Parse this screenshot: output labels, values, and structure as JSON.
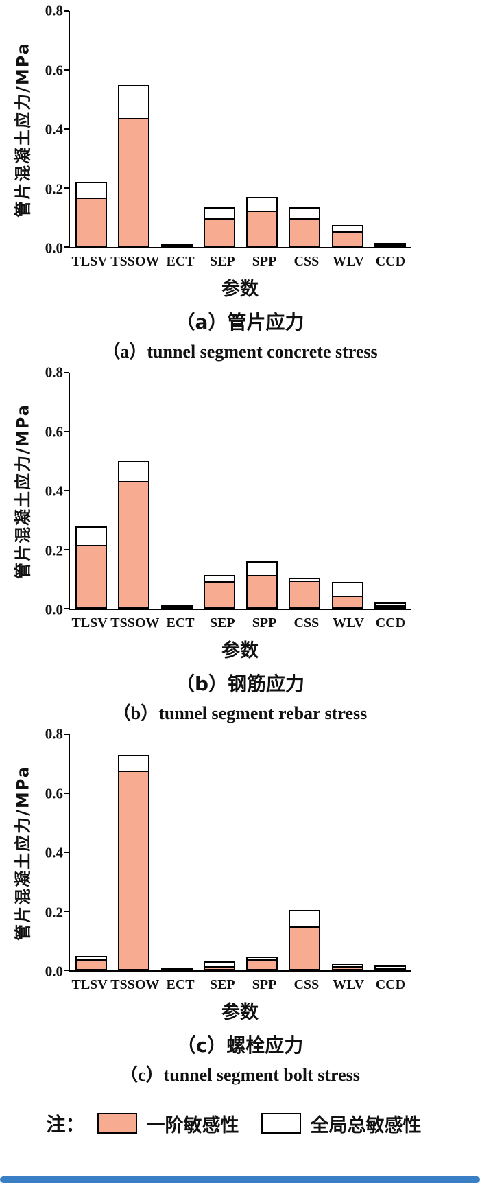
{
  "note_label": "注：",
  "legend": [
    {
      "label": "一阶敏感性",
      "color": "#F7AC92"
    },
    {
      "label": "全局总敏感性",
      "color": "#FFFFFF"
    }
  ],
  "accent_colors": {
    "bar_fill": "#F7AC92",
    "bar_border": "#000000",
    "bottom_rule": "#3A7EC6"
  },
  "chart_data": [
    {
      "type": "bar",
      "stacked": true,
      "ylabel": "管片混凝土应力/MPa",
      "xlabel": "参数",
      "title_cn": "（a）管片应力",
      "title_en": "（a）tunnel segment concrete stress",
      "ylim": [
        0,
        0.8
      ],
      "yticks": [
        0.0,
        0.2,
        0.4,
        0.6,
        0.8
      ],
      "categories": [
        "TLSV",
        "TSSOW",
        "ECT",
        "SEP",
        "SPP",
        "CSS",
        "WLV",
        "CCD"
      ],
      "series": [
        {
          "name": "一阶敏感性",
          "values": [
            0.17,
            0.44,
            0.008,
            0.1,
            0.125,
            0.1,
            0.055,
            0.012
          ]
        },
        {
          "name": "全局总敏感性",
          "values": [
            0.22,
            0.55,
            0.012,
            0.135,
            0.17,
            0.135,
            0.075,
            0.015
          ]
        }
      ]
    },
    {
      "type": "bar",
      "stacked": true,
      "ylabel": "管片混凝土应力/MPa",
      "xlabel": "参数",
      "title_cn": "（b）钢筋应力",
      "title_en": "（b）tunnel segment rebar stress",
      "ylim": [
        0,
        0.8
      ],
      "yticks": [
        0.0,
        0.2,
        0.4,
        0.6,
        0.8
      ],
      "categories": [
        "TLSV",
        "TSSOW",
        "ECT",
        "SEP",
        "SPP",
        "CSS",
        "WLV",
        "CCD"
      ],
      "series": [
        {
          "name": "一阶敏感性",
          "values": [
            0.22,
            0.435,
            0.01,
            0.095,
            0.115,
            0.1,
            0.045,
            0.015
          ]
        },
        {
          "name": "全局总敏感性",
          "values": [
            0.28,
            0.5,
            0.014,
            0.115,
            0.16,
            0.105,
            0.09,
            0.02
          ]
        }
      ]
    },
    {
      "type": "bar",
      "stacked": true,
      "ylabel": "管片混凝土应力/MPa",
      "xlabel": "参数",
      "title_cn": "（c）螺栓应力",
      "title_en": "（c）tunnel segment bolt stress",
      "ylim": [
        0,
        0.8
      ],
      "yticks": [
        0.0,
        0.2,
        0.4,
        0.6,
        0.8
      ],
      "categories": [
        "TLSV",
        "TSSOW",
        "ECT",
        "SEP",
        "SPP",
        "CSS",
        "WLV",
        "CCD"
      ],
      "series": [
        {
          "name": "一阶敏感性",
          "values": [
            0.04,
            0.68,
            0.006,
            0.015,
            0.04,
            0.15,
            0.015,
            0.012
          ]
        },
        {
          "name": "全局总敏感性",
          "values": [
            0.05,
            0.73,
            0.01,
            0.03,
            0.047,
            0.205,
            0.022,
            0.016
          ]
        }
      ]
    }
  ]
}
